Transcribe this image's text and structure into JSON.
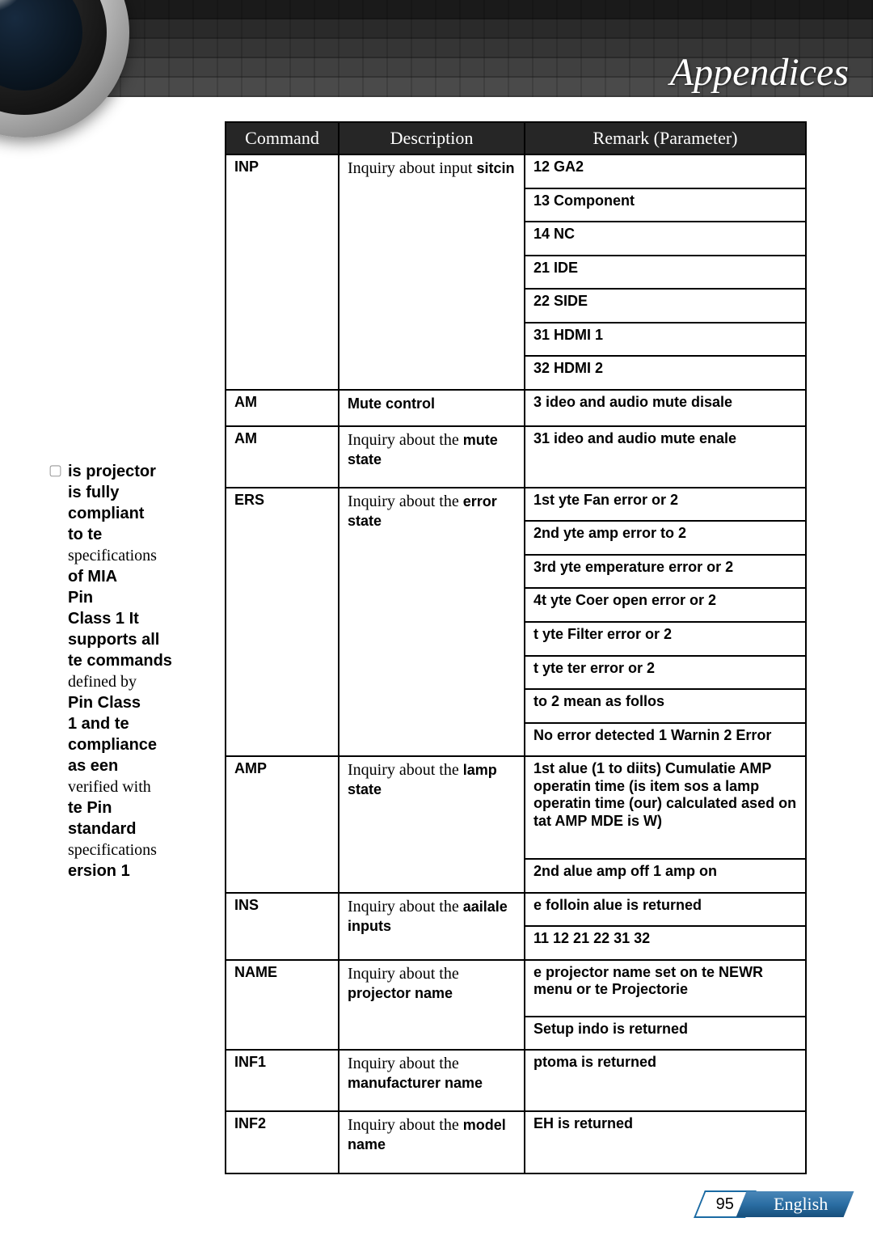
{
  "header": {
    "title": "Appendices"
  },
  "sidebar": {
    "lines": [
      {
        "style": "bold",
        "text": "is projector"
      },
      {
        "style": "bold",
        "text": "is fully"
      },
      {
        "style": "bold",
        "text": "compliant"
      },
      {
        "style": "bold",
        "text": "to te"
      },
      {
        "style": "normal",
        "text": "specifications"
      },
      {
        "style": "bold",
        "text": "of MIA"
      },
      {
        "style": "bold",
        "text": "Pin"
      },
      {
        "style": "bold",
        "text": "Class 1 It"
      },
      {
        "style": "bold",
        "text": "supports all"
      },
      {
        "style": "bold",
        "text": "te commands"
      },
      {
        "style": "normal",
        "text": "defined by"
      },
      {
        "style": "bold",
        "text": "Pin Class"
      },
      {
        "style": "bold",
        "text": "1 and te"
      },
      {
        "style": "bold",
        "text": "compliance"
      },
      {
        "style": "bold",
        "text": "as een"
      },
      {
        "style": "normal",
        "text": "verified with"
      },
      {
        "style": "bold",
        "text": "te Pin"
      },
      {
        "style": "bold",
        "text": "standard"
      },
      {
        "style": "normal",
        "text": "specifications"
      },
      {
        "style": "bold",
        "text": "ersion 1"
      }
    ]
  },
  "table": {
    "headers": {
      "command": "Command",
      "description": "Description",
      "remark": "Remark (Parameter)"
    },
    "inp": {
      "cmd": "INP",
      "desc_plain": "Inquiry about input ",
      "desc_bold": "sitcin",
      "p1": "12  GA2",
      "p2": "13  Component",
      "p3": "14  NC",
      "p4": "21  IDE",
      "p5": "22  SIDE",
      "p6": "31  HDMI 1",
      "p7": "32  HDMI 2"
    },
    "am1": {
      "cmd": "AM",
      "desc": "Mute control",
      "param": "3  ideo and audio mute disale"
    },
    "am2": {
      "cmd": "AM",
      "desc_plain": "Inquiry about the ",
      "desc_bold": "mute state",
      "param": "31  ideo and audio mute enale"
    },
    "ers": {
      "cmd": "ERS",
      "desc_plain": "Inquiry about the ",
      "desc_bold": "error state",
      "p1": "1st yte Fan error  or 2",
      "p2": "2nd yte amp error  to 2",
      "p3": "3rd yte emperature error  or 2",
      "p4": "4t yte Coer open error  or 2",
      "p5": "t yte Filter error  or 2",
      "p6": "t yte ter error  or 2",
      "p7": "  to 2 mean as follos",
      "p8": "  No error detected 1 Warnin 2  Error"
    },
    "amp": {
      "cmd": "AMP",
      "desc_plain": "Inquiry about the ",
      "desc_bold": "lamp state",
      "p1": "1st alue (1 to  diits) Cumulatie AMP operatin time (is item sos a lamp operatin time (our) calculated ased on tat AMP MDE is W)",
      "p2": "2nd alue   amp off 1  amp on"
    },
    "ins": {
      "cmd": "INS",
      "desc_plain": "Inquiry about the ",
      "desc_bold": "aailale inputs",
      "p1": "e folloin alue is returned",
      "p2": "11 12 21 22 31 32"
    },
    "name": {
      "cmd": "NAME",
      "desc_plain": "Inquiry about the ",
      "desc_bold": "projector name",
      "p1": "e projector name set on te NEWR menu or te Projectorie",
      "p2": "Setup indo is returned"
    },
    "inf1": {
      "cmd": "INF1",
      "desc_plain": "Inquiry about the ",
      "desc_bold": "manufacturer name",
      "param": "ptoma is returned"
    },
    "inf2": {
      "cmd": "INF2",
      "desc_plain": "Inquiry about the ",
      "desc_bold": "model name",
      "param": "EH is returned"
    }
  },
  "footer": {
    "page": "95",
    "language": "English"
  }
}
